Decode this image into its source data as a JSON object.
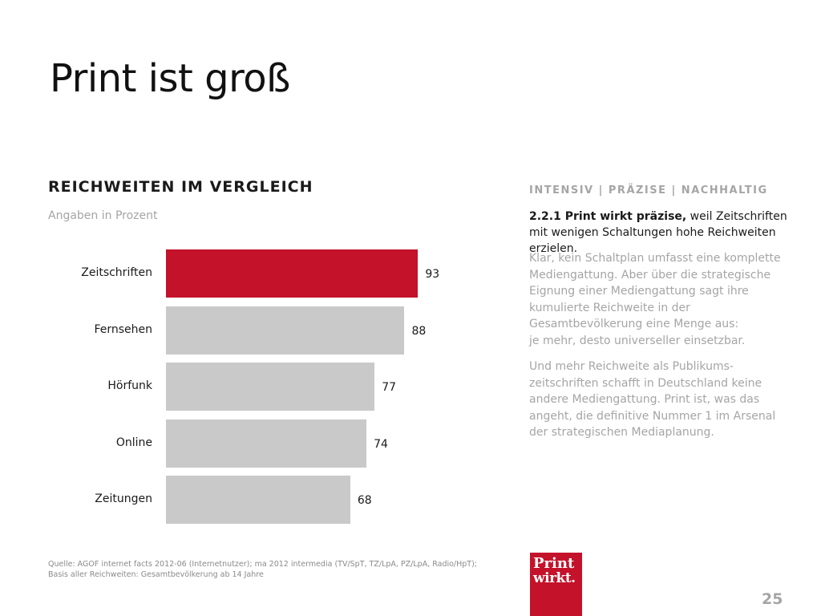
{
  "slide": {
    "title": "Print ist groß",
    "page_number": "25"
  },
  "chart_data": {
    "type": "bar",
    "orientation": "horizontal",
    "title": "REICHWEITEN IM VERGLEICH",
    "subtitle": "Angaben in Prozent",
    "categories": [
      "Zeitschriften",
      "Fernsehen",
      "Hörfunk",
      "Online",
      "Zeitungen"
    ],
    "values": [
      93,
      88,
      77,
      74,
      68
    ],
    "highlight_color": "#c4122a",
    "bar_color": "#c8c9c8",
    "highlight_index": 0,
    "xlim": [
      0,
      100
    ],
    "grid": false
  },
  "sidebar": {
    "heading": "INTENSIV | PRÄZISE | NACHHALTIG",
    "lead_bold": "2.2.1 Print wirkt präzise,",
    "lead_rest": " weil Zeitschriften mit wenigen Schaltungen hohe Reichweiten erzielen.",
    "paragraph1": "Klar, kein Schaltplan umfasst eine komplette\nMediengattung. Aber über die strategische\nEignung einer Mediengattung sagt ihre\nkumulierte Reichweite in der\nGesamtbevölkerung eine Menge aus:\nje mehr, desto universeller einsetzbar.",
    "paragraph2": "Und mehr Reichweite als Publikums-\nzeitschriften schafft in Deutschland keine\nandere Mediengattung. Print ist, was das\nangeht, die definitive Nummer 1 im Arsenal\nder strategischen Mediaplanung."
  },
  "footer": {
    "source": "Quelle: AGOF internet facts 2012-06 (Internetnutzer); ma 2012 intermedia (TV/SpT, TZ/LpA, PZ/LpA, Radio/HpT);\nBasis aller Reichweiten: Gesamtbevölkerung ab 14 Jahre",
    "logo_line1": "Print",
    "logo_line2": "wirkt."
  }
}
